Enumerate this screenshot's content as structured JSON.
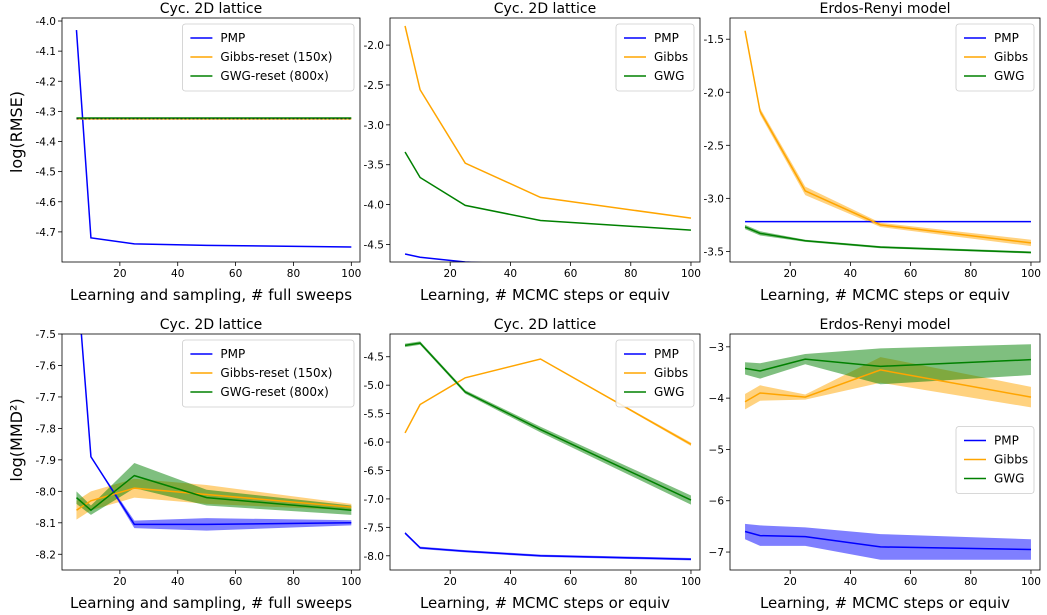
{
  "figure": {
    "ylabel_top": "log(RMSE)",
    "ylabel_bottom": "log(MMD²)"
  },
  "colors": {
    "PMP": "#0000ff",
    "Gibbs": "#ffa500",
    "GWG": "#008000"
  },
  "chart_data": [
    {
      "type": "line",
      "title": "Cyc. 2D lattice",
      "xlabel": "Learning and sampling, # full sweeps",
      "ylabel": "log(RMSE)",
      "xlim": [
        0,
        103
      ],
      "ylim": [
        -4.8,
        -3.99
      ],
      "xticks": [
        20,
        40,
        60,
        80,
        100
      ],
      "yticks": [
        -4.0,
        -4.1,
        -4.2,
        -4.3,
        -4.4,
        -4.5,
        -4.6,
        -4.7
      ],
      "ytick_labels": [
        "-4.0",
        "-4.1",
        "-4.2",
        "-4.3",
        "-4.4",
        "-4.5",
        "-4.6",
        "-4.7"
      ],
      "legend": "top-right",
      "series": [
        {
          "name": "PMP",
          "color": "#0000ff",
          "x": [
            5,
            10,
            25,
            50,
            100
          ],
          "y": [
            -4.03,
            -4.72,
            -4.74,
            -4.745,
            -4.75
          ]
        },
        {
          "name": "Gibbs-reset (150x)",
          "color": "#ffa500",
          "x": [
            5,
            100
          ],
          "y": [
            -4.325,
            -4.325
          ]
        },
        {
          "name": "GWG-reset (800x)",
          "color": "#008000",
          "x": [
            5,
            100
          ],
          "y": [
            -4.322,
            -4.322
          ]
        }
      ]
    },
    {
      "type": "line",
      "title": "Cyc. 2D lattice",
      "xlabel": "Learning, # MCMC steps or equiv",
      "ylabel": "",
      "xlim": [
        0,
        103
      ],
      "ylim": [
        -4.72,
        -1.66
      ],
      "xticks": [
        20,
        40,
        60,
        80,
        100
      ],
      "yticks": [
        -2.0,
        -2.5,
        -3.0,
        -3.5,
        -4.0,
        -4.5
      ],
      "ytick_labels": [
        "-2.0",
        "-2.5",
        "-3.0",
        "-3.5",
        "-4.0",
        "-4.5"
      ],
      "legend": "top-right",
      "series": [
        {
          "name": "PMP",
          "color": "#0000ff",
          "x": [
            5,
            10,
            25,
            50,
            100
          ],
          "y": [
            -4.62,
            -4.66,
            -4.72,
            -4.76,
            -4.8
          ]
        },
        {
          "name": "Gibbs",
          "color": "#ffa500",
          "x": [
            5,
            10,
            25,
            50,
            100
          ],
          "y": [
            -1.76,
            -2.56,
            -3.48,
            -3.91,
            -4.17
          ]
        },
        {
          "name": "GWG",
          "color": "#008000",
          "x": [
            5,
            10,
            25,
            50,
            100
          ],
          "y": [
            -3.34,
            -3.66,
            -4.01,
            -4.2,
            -4.32
          ]
        }
      ]
    },
    {
      "type": "line",
      "title": "Erdos-Renyi model",
      "xlabel": "Learning, # MCMC steps or equiv",
      "ylabel": "",
      "xlim": [
        0,
        103
      ],
      "ylim": [
        -3.6,
        -1.3
      ],
      "xticks": [
        20,
        40,
        60,
        80,
        100
      ],
      "yticks": [
        -1.5,
        -2.0,
        -2.5,
        -3.0,
        -3.5
      ],
      "ytick_labels": [
        "-1.5",
        "-2.0",
        "-2.5",
        "-3.0",
        "-3.5"
      ],
      "legend": "top-right",
      "series": [
        {
          "name": "PMP",
          "color": "#0000ff",
          "x": [
            5,
            100
          ],
          "y": [
            -3.22,
            -3.22
          ]
        },
        {
          "name": "Gibbs",
          "color": "#ffa500",
          "x": [
            5,
            10,
            25,
            50,
            100
          ],
          "y": [
            -1.42,
            -2.18,
            -2.93,
            -3.25,
            -3.42
          ],
          "band": [
            0.0,
            0.03,
            0.04,
            0.02,
            0.03
          ]
        },
        {
          "name": "GWG",
          "color": "#008000",
          "x": [
            5,
            10,
            25,
            50,
            100
          ],
          "y": [
            -3.27,
            -3.33,
            -3.4,
            -3.46,
            -3.51
          ],
          "band": [
            0.02,
            0.02,
            0.01,
            0.01,
            0.01
          ]
        }
      ]
    },
    {
      "type": "line",
      "title": "Cyc. 2D lattice",
      "xlabel": "Learning and sampling, # full sweeps",
      "ylabel": "log(MMD²)",
      "xlim": [
        0,
        103
      ],
      "ylim": [
        -8.25,
        -7.5
      ],
      "xticks": [
        20,
        40,
        60,
        80,
        100
      ],
      "yticks": [
        -7.5,
        -7.6,
        -7.7,
        -7.8,
        -7.9,
        -8.0,
        -8.1,
        -8.2
      ],
      "ytick_labels": [
        "-7.5",
        "-7.6",
        "-7.7",
        "-7.8",
        "-7.9",
        "-8.0",
        "-8.1",
        "-8.2"
      ],
      "legend": "top-right",
      "series": [
        {
          "name": "PMP",
          "color": "#0000ff",
          "x": [
            5,
            10,
            25,
            50,
            100
          ],
          "y": [
            -7.3,
            -7.89,
            -8.105,
            -8.105,
            -8.1
          ],
          "band": [
            0.0,
            0.0,
            0.012,
            0.02,
            0.008
          ]
        },
        {
          "name": "Gibbs-reset (150x)",
          "color": "#ffa500",
          "x": [
            5,
            10,
            25,
            50,
            100
          ],
          "y": [
            -8.06,
            -8.03,
            -7.99,
            -8.01,
            -8.05
          ],
          "band": [
            0.03,
            0.03,
            0.03,
            0.03,
            0.01
          ]
        },
        {
          "name": "GWG-reset (800x)",
          "color": "#008000",
          "x": [
            5,
            10,
            25,
            50,
            100
          ],
          "y": [
            -8.02,
            -8.06,
            -7.95,
            -8.02,
            -8.06
          ],
          "band": [
            0.02,
            0.015,
            0.04,
            0.025,
            0.015
          ]
        }
      ]
    },
    {
      "type": "line",
      "title": "Cyc. 2D lattice",
      "xlabel": "Learning, # MCMC steps or equiv",
      "ylabel": "",
      "xlim": [
        0,
        103
      ],
      "ylim": [
        -8.25,
        -4.1
      ],
      "xticks": [
        20,
        40,
        60,
        80,
        100
      ],
      "yticks": [
        -4.5,
        -5.0,
        -5.5,
        -6.0,
        -6.5,
        -7.0,
        -7.5,
        -8.0
      ],
      "ytick_labels": [
        "-4.5",
        "-5.0",
        "-5.5",
        "-6.0",
        "-6.5",
        "-7.0",
        "-7.5",
        "-8.0"
      ],
      "legend": "top-right",
      "series": [
        {
          "name": "PMP",
          "color": "#0000ff",
          "x": [
            5,
            10,
            25,
            50,
            100
          ],
          "y": [
            -7.6,
            -7.86,
            -7.92,
            -8.0,
            -8.06
          ],
          "band": [
            0.02,
            0.02,
            0.02,
            0.02,
            0.02
          ]
        },
        {
          "name": "Gibbs",
          "color": "#ffa500",
          "x": [
            5,
            10,
            25,
            50,
            100
          ],
          "y": [
            -5.84,
            -5.34,
            -4.87,
            -4.54,
            -6.04
          ],
          "band": [
            0.0,
            0.0,
            0.0,
            0.0,
            0.03
          ]
        },
        {
          "name": "GWG",
          "color": "#008000",
          "x": [
            5,
            10,
            25,
            50,
            100
          ],
          "y": [
            -4.3,
            -4.26,
            -5.12,
            -5.78,
            -7.02
          ],
          "band": [
            0.03,
            0.03,
            0.03,
            0.05,
            0.08
          ]
        }
      ]
    },
    {
      "type": "line",
      "title": "Erdos-Renyi model",
      "xlabel": "Learning, # MCMC steps or equiv",
      "ylabel": "",
      "xlim": [
        0,
        103
      ],
      "ylim": [
        -7.35,
        -2.75
      ],
      "xticks": [
        20,
        40,
        60,
        80,
        100
      ],
      "yticks": [
        -3,
        -4,
        -5,
        -6,
        -7
      ],
      "ytick_labels": [
        "−3",
        "−4",
        "−5",
        "−6",
        "−7"
      ],
      "legend": "center-right",
      "series": [
        {
          "name": "PMP",
          "color": "#0000ff",
          "x": [
            5,
            10,
            25,
            50,
            100
          ],
          "y": [
            -6.6,
            -6.68,
            -6.7,
            -6.9,
            -6.95
          ],
          "band": [
            0.15,
            0.2,
            0.18,
            0.25,
            0.2
          ]
        },
        {
          "name": "Gibbs",
          "color": "#ffa500",
          "x": [
            5,
            10,
            25,
            50,
            100
          ],
          "y": [
            -4.07,
            -3.9,
            -3.98,
            -3.45,
            -3.98
          ],
          "band": [
            0.15,
            0.15,
            0.05,
            0.25,
            0.2
          ]
        },
        {
          "name": "GWG",
          "color": "#008000",
          "x": [
            5,
            10,
            25,
            50,
            100
          ],
          "y": [
            -3.42,
            -3.47,
            -3.24,
            -3.38,
            -3.25
          ],
          "band": [
            0.12,
            0.15,
            0.1,
            0.35,
            0.3
          ]
        }
      ]
    }
  ]
}
